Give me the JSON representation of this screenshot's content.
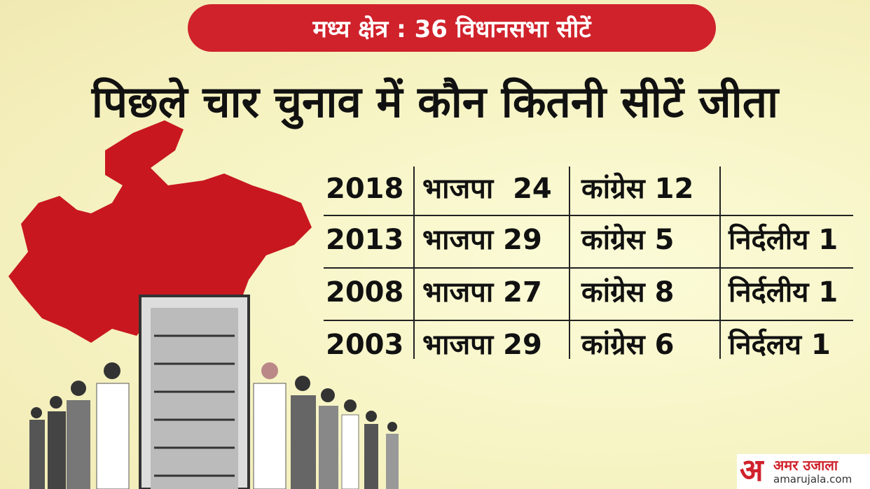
{
  "header": {
    "banner": "मध्य क्षेत्र : 36 विधानसभा सीटें",
    "title": "पिछले चार चुनाव में कौन कितनी सीटें जीता"
  },
  "table": {
    "rows": [
      [
        "2018",
        "भाजपा  24",
        "कांग्रेस 12"
      ],
      [
        "2013",
        "भाजपा 29",
        "कांग्रेस 5",
        "निर्दलीय 1"
      ],
      [
        "2008",
        "भाजपा 27",
        "कांग्रेस 8",
        "निर्दलीय 1"
      ],
      [
        "2003",
        "भाजपा 29",
        "कांग्रेस 6",
        "निर्दलय 1"
      ]
    ]
  },
  "logo": {
    "mark": "अ",
    "name": "अमर उजाला",
    "url": "amarujala.com"
  }
}
